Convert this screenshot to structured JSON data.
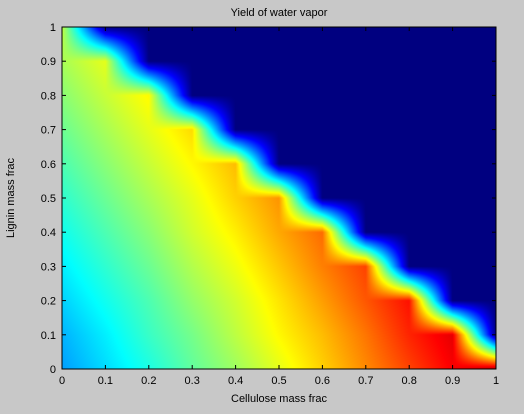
{
  "chart_data": {
    "type": "heatmap",
    "title": "Yield of water vapor",
    "xlabel": "Cellulose mass frac",
    "ylabel": "Lignin mass frac",
    "xlim": [
      0,
      1
    ],
    "ylim": [
      0,
      1
    ],
    "xticks": [
      "0",
      "0.1",
      "0.2",
      "0.3",
      "0.4",
      "0.5",
      "0.6",
      "0.7",
      "0.8",
      "0.9",
      "1"
    ],
    "yticks": [
      "0",
      "0.1",
      "0.2",
      "0.3",
      "0.4",
      "0.5",
      "0.6",
      "0.7",
      "0.8",
      "0.9",
      "1"
    ],
    "colormap": "jet",
    "grid": false,
    "colorbar": false,
    "background_fill_color": "#00008f",
    "note_region": "values defined only where cellulose + lignin <= 1; zero-filled elsewhere",
    "x": [
      0,
      0.1,
      0.2,
      0.3,
      0.4,
      0.5,
      0.6,
      0.7,
      0.8,
      0.9,
      1.0
    ],
    "y": [
      0,
      0.1,
      0.2,
      0.3,
      0.4,
      0.5,
      0.6,
      0.7,
      0.8,
      0.9,
      1.0
    ],
    "z": [
      [
        0.28,
        0.34,
        0.4,
        0.47,
        0.53,
        0.6,
        0.67,
        0.74,
        0.81,
        0.88,
        0.95
      ],
      [
        0.3,
        0.36,
        0.43,
        0.49,
        0.56,
        0.63,
        0.69,
        0.76,
        0.84,
        0.9,
        0.0
      ],
      [
        0.33,
        0.39,
        0.45,
        0.52,
        0.58,
        0.65,
        0.72,
        0.79,
        0.86,
        0.0,
        0.0
      ],
      [
        0.36,
        0.42,
        0.48,
        0.55,
        0.61,
        0.68,
        0.75,
        0.81,
        0.0,
        0.0,
        0.0
      ],
      [
        0.39,
        0.45,
        0.51,
        0.58,
        0.64,
        0.71,
        0.77,
        0.0,
        0.0,
        0.0,
        0.0
      ],
      [
        0.42,
        0.48,
        0.54,
        0.6,
        0.67,
        0.73,
        0.0,
        0.0,
        0.0,
        0.0,
        0.0
      ],
      [
        0.45,
        0.51,
        0.57,
        0.63,
        0.69,
        0.0,
        0.0,
        0.0,
        0.0,
        0.0,
        0.0
      ],
      [
        0.48,
        0.54,
        0.6,
        0.66,
        0.0,
        0.0,
        0.0,
        0.0,
        0.0,
        0.0,
        0.0
      ],
      [
        0.51,
        0.57,
        0.63,
        0.0,
        0.0,
        0.0,
        0.0,
        0.0,
        0.0,
        0.0,
        0.0
      ],
      [
        0.54,
        0.6,
        0.0,
        0.0,
        0.0,
        0.0,
        0.0,
        0.0,
        0.0,
        0.0,
        0.0
      ],
      [
        0.57,
        0.0,
        0.0,
        0.0,
        0.0,
        0.0,
        0.0,
        0.0,
        0.0,
        0.0,
        0.0
      ]
    ]
  }
}
